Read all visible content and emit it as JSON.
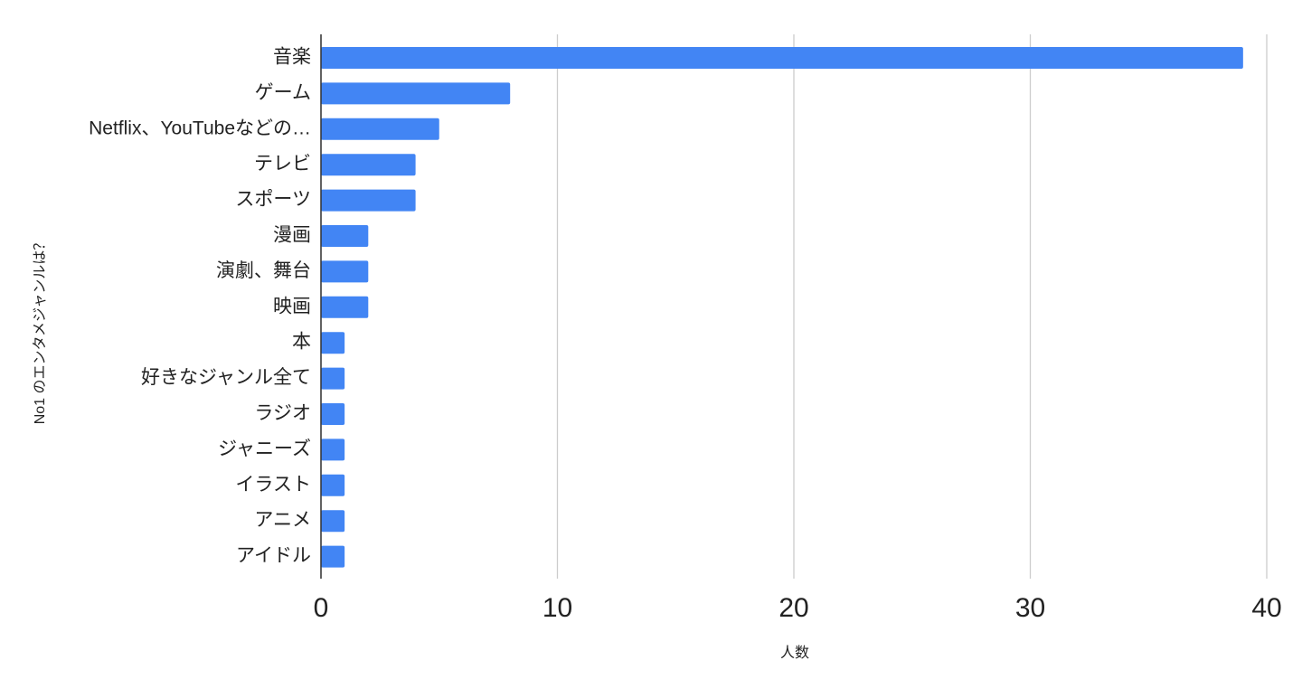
{
  "chart_data": {
    "type": "bar",
    "orientation": "horizontal",
    "x_label": "人数",
    "y_label": "No1 のエンタメジャンルは？",
    "categories": [
      "音楽",
      "ゲーム",
      "Netflix、YouTubeなどの…",
      "テレビ",
      "スポーツ",
      "漫画",
      "演劇、舞台",
      "映画",
      "本",
      "好きなジャンル全て",
      "ラジオ",
      "ジャニーズ",
      "イラスト",
      "アニメ",
      "アイドル"
    ],
    "values": [
      39,
      8,
      5,
      4,
      4,
      2,
      2,
      2,
      1,
      1,
      1,
      1,
      1,
      1,
      1
    ],
    "color": "#4285f4",
    "xlim": [
      0,
      40
    ],
    "xticks": [
      0,
      10,
      20,
      30,
      40
    ],
    "grid": true
  }
}
